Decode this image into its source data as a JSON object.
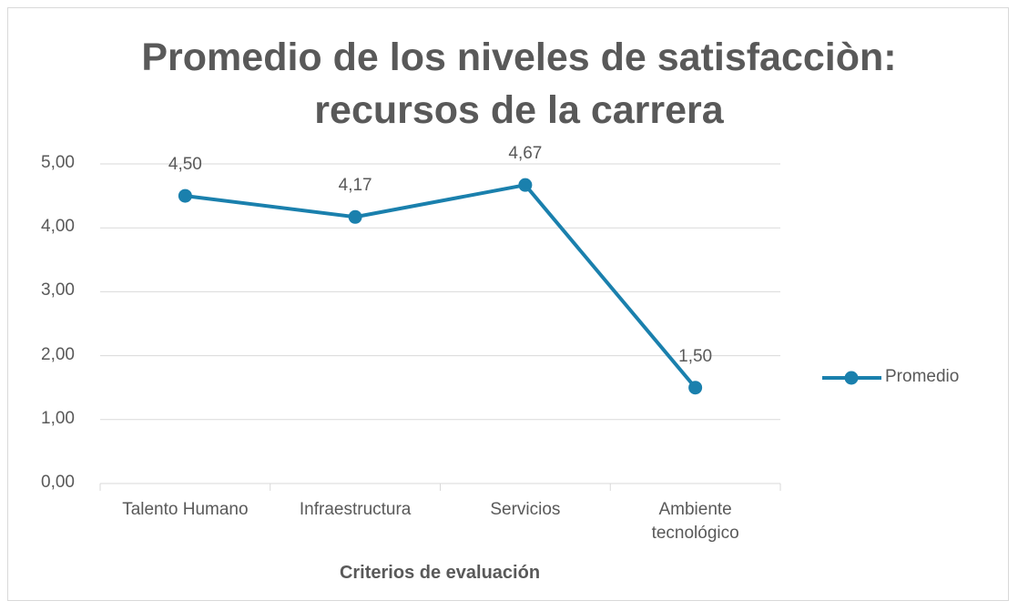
{
  "chart_data": {
    "type": "line",
    "title": "Promedio de los niveles de satisfacciòn: recursos de la carrera",
    "x_label": "Criterios de evaluación",
    "categories": [
      "Talento Humano",
      "Infraestructura",
      "Servicios",
      "Ambiente tecnológico"
    ],
    "series": [
      {
        "name": "Promedio",
        "color": "#1a80ad",
        "values": [
          4.5,
          4.17,
          4.67,
          1.5
        ],
        "value_labels": [
          "4,50",
          "4,17",
          "4,67",
          "1,50"
        ]
      }
    ],
    "ylim": [
      0,
      5
    ],
    "yticks": [
      {
        "value": 0,
        "label": "0,00"
      },
      {
        "value": 1,
        "label": "1,00"
      },
      {
        "value": 2,
        "label": "2,00"
      },
      {
        "value": 3,
        "label": "3,00"
      },
      {
        "value": 4,
        "label": "4,00"
      },
      {
        "value": 5,
        "label": "5,00"
      }
    ],
    "grid": true,
    "legend": "right"
  }
}
